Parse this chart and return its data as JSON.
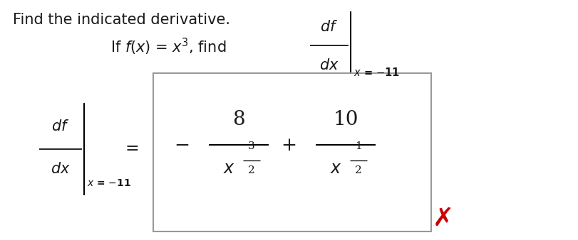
{
  "bg_color": "#ffffff",
  "fig_width": 8.12,
  "fig_height": 3.38,
  "dpi": 100,
  "title": "Find the indicated derivative.",
  "title_fontsize": 15,
  "body_fontsize": 15,
  "box_edge_color": "#999999",
  "red_x_color": "#cc0000",
  "black": "#1a1a1a"
}
